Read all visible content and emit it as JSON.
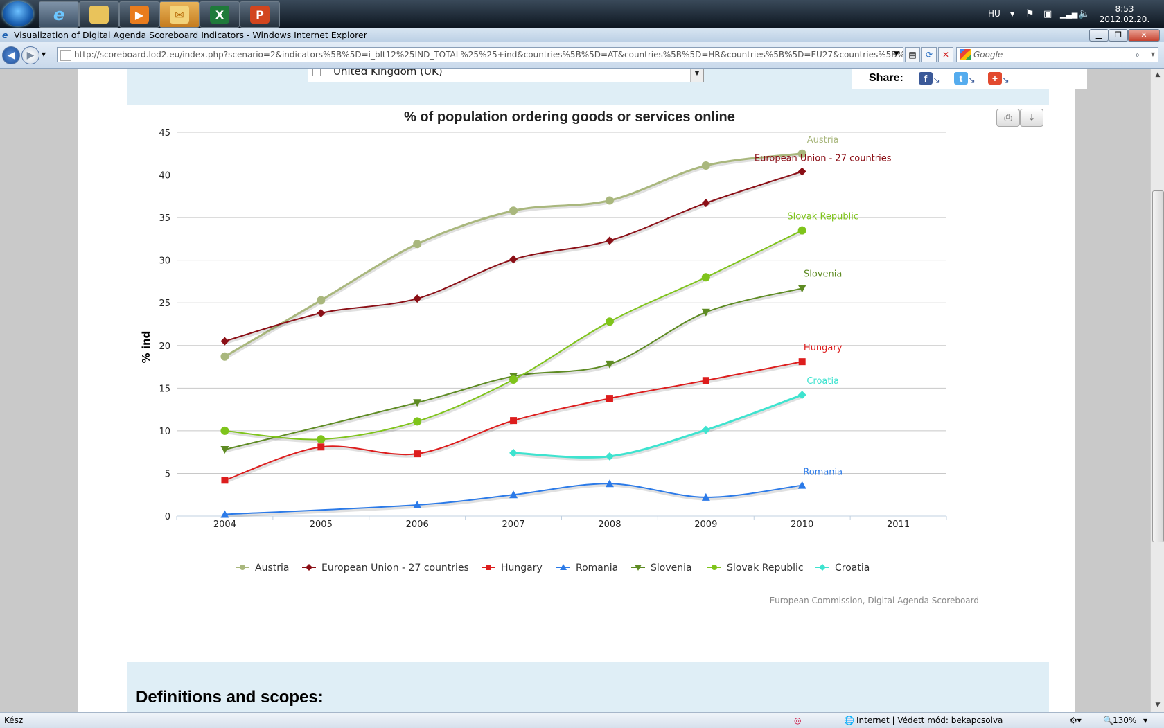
{
  "taskbar": {
    "language": "HU",
    "time": "8:53",
    "date": "2012.02.20."
  },
  "window": {
    "title": "Visualization of Digital Agenda Scoreboard Indicators - Windows Internet Explorer"
  },
  "navbar": {
    "url": "http://scoreboard.lod2.eu/index.php?scenario=2&indicators%5B%5D=i_blt12%25IND_TOTAL%25%25+ind&countries%5B%5D=AT&countries%5B%5D=HR&countries%5B%5D=EU27&countries%5B%5D=HU&countries%5B",
    "search_placeholder": "Google"
  },
  "page": {
    "country_select_value": "United Kingdom (UK)",
    "share_label": "Share:",
    "credit": "European Commission, Digital Agenda Scoreboard",
    "definitions_heading": "Definitions and scopes:"
  },
  "status": {
    "left": "Kész",
    "zone": "Internet | Védett mód: bekapcsolva",
    "zoom": "130%"
  },
  "chart_data": {
    "type": "line",
    "title": "% of population ordering goods or services online",
    "ylabel": "% ind",
    "xlabel": "",
    "ylim": [
      0,
      45
    ],
    "yticks": [
      0,
      5,
      10,
      15,
      20,
      25,
      30,
      35,
      40,
      45
    ],
    "x": [
      2004,
      2005,
      2006,
      2007,
      2008,
      2009,
      2010,
      2011
    ],
    "grid": true,
    "legend_position": "bottom",
    "series": [
      {
        "name": "Austria",
        "color": "#a9b77d",
        "marker": "circle",
        "values": [
          18.7,
          25.3,
          31.9,
          35.8,
          37.0,
          41.1,
          42.5,
          null
        ]
      },
      {
        "name": "European Union - 27 countries",
        "color": "#8b0f16",
        "marker": "diamond",
        "values": [
          20.5,
          23.8,
          25.5,
          30.1,
          32.3,
          36.7,
          40.4,
          null
        ]
      },
      {
        "name": "Hungary",
        "color": "#dd1d1d",
        "marker": "square",
        "values": [
          4.2,
          8.1,
          7.3,
          11.2,
          13.8,
          15.9,
          18.1,
          null
        ]
      },
      {
        "name": "Romania",
        "color": "#2b7ae8",
        "marker": "triangle",
        "values": [
          0.2,
          null,
          1.3,
          2.5,
          3.8,
          2.2,
          3.6,
          null
        ]
      },
      {
        "name": "Slovenia",
        "color": "#5e8b23",
        "marker": "triangle-down",
        "values": [
          7.8,
          null,
          13.3,
          16.4,
          17.8,
          23.9,
          26.7,
          null
        ]
      },
      {
        "name": "Slovak Republic",
        "color": "#7fc41b",
        "marker": "circle",
        "values": [
          10.0,
          9.0,
          11.1,
          16.0,
          22.8,
          28.0,
          33.5,
          null
        ]
      },
      {
        "name": "Croatia",
        "color": "#3ee3cf",
        "marker": "diamond",
        "values": [
          null,
          null,
          null,
          7.4,
          7.0,
          10.1,
          14.2,
          null
        ]
      }
    ]
  }
}
